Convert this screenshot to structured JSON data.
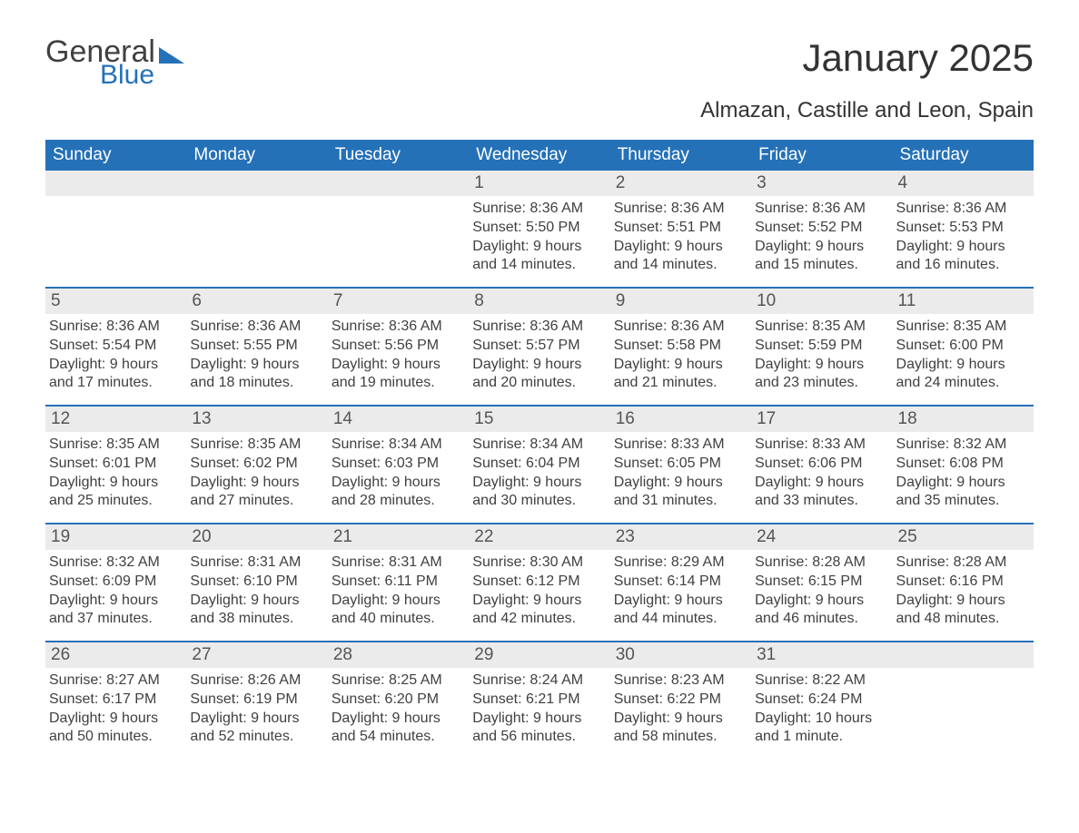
{
  "logo": {
    "text1": "General",
    "text2": "Blue"
  },
  "title": "January 2025",
  "subtitle": "Almazan, Castille and Leon, Spain",
  "colors": {
    "header_bg": "#2571b8",
    "header_text": "#ffffff",
    "daynum_bg": "#ebebeb",
    "week_border": "#2571b8",
    "body_text": "#404040",
    "page_bg": "#ffffff"
  },
  "day_headers": [
    "Sunday",
    "Monday",
    "Tuesday",
    "Wednesday",
    "Thursday",
    "Friday",
    "Saturday"
  ],
  "weeks": [
    [
      {
        "num": "",
        "sunrise": "",
        "sunset": "",
        "daylight1": "",
        "daylight2": ""
      },
      {
        "num": "",
        "sunrise": "",
        "sunset": "",
        "daylight1": "",
        "daylight2": ""
      },
      {
        "num": "",
        "sunrise": "",
        "sunset": "",
        "daylight1": "",
        "daylight2": ""
      },
      {
        "num": "1",
        "sunrise": "Sunrise: 8:36 AM",
        "sunset": "Sunset: 5:50 PM",
        "daylight1": "Daylight: 9 hours",
        "daylight2": "and 14 minutes."
      },
      {
        "num": "2",
        "sunrise": "Sunrise: 8:36 AM",
        "sunset": "Sunset: 5:51 PM",
        "daylight1": "Daylight: 9 hours",
        "daylight2": "and 14 minutes."
      },
      {
        "num": "3",
        "sunrise": "Sunrise: 8:36 AM",
        "sunset": "Sunset: 5:52 PM",
        "daylight1": "Daylight: 9 hours",
        "daylight2": "and 15 minutes."
      },
      {
        "num": "4",
        "sunrise": "Sunrise: 8:36 AM",
        "sunset": "Sunset: 5:53 PM",
        "daylight1": "Daylight: 9 hours",
        "daylight2": "and 16 minutes."
      }
    ],
    [
      {
        "num": "5",
        "sunrise": "Sunrise: 8:36 AM",
        "sunset": "Sunset: 5:54 PM",
        "daylight1": "Daylight: 9 hours",
        "daylight2": "and 17 minutes."
      },
      {
        "num": "6",
        "sunrise": "Sunrise: 8:36 AM",
        "sunset": "Sunset: 5:55 PM",
        "daylight1": "Daylight: 9 hours",
        "daylight2": "and 18 minutes."
      },
      {
        "num": "7",
        "sunrise": "Sunrise: 8:36 AM",
        "sunset": "Sunset: 5:56 PM",
        "daylight1": "Daylight: 9 hours",
        "daylight2": "and 19 minutes."
      },
      {
        "num": "8",
        "sunrise": "Sunrise: 8:36 AM",
        "sunset": "Sunset: 5:57 PM",
        "daylight1": "Daylight: 9 hours",
        "daylight2": "and 20 minutes."
      },
      {
        "num": "9",
        "sunrise": "Sunrise: 8:36 AM",
        "sunset": "Sunset: 5:58 PM",
        "daylight1": "Daylight: 9 hours",
        "daylight2": "and 21 minutes."
      },
      {
        "num": "10",
        "sunrise": "Sunrise: 8:35 AM",
        "sunset": "Sunset: 5:59 PM",
        "daylight1": "Daylight: 9 hours",
        "daylight2": "and 23 minutes."
      },
      {
        "num": "11",
        "sunrise": "Sunrise: 8:35 AM",
        "sunset": "Sunset: 6:00 PM",
        "daylight1": "Daylight: 9 hours",
        "daylight2": "and 24 minutes."
      }
    ],
    [
      {
        "num": "12",
        "sunrise": "Sunrise: 8:35 AM",
        "sunset": "Sunset: 6:01 PM",
        "daylight1": "Daylight: 9 hours",
        "daylight2": "and 25 minutes."
      },
      {
        "num": "13",
        "sunrise": "Sunrise: 8:35 AM",
        "sunset": "Sunset: 6:02 PM",
        "daylight1": "Daylight: 9 hours",
        "daylight2": "and 27 minutes."
      },
      {
        "num": "14",
        "sunrise": "Sunrise: 8:34 AM",
        "sunset": "Sunset: 6:03 PM",
        "daylight1": "Daylight: 9 hours",
        "daylight2": "and 28 minutes."
      },
      {
        "num": "15",
        "sunrise": "Sunrise: 8:34 AM",
        "sunset": "Sunset: 6:04 PM",
        "daylight1": "Daylight: 9 hours",
        "daylight2": "and 30 minutes."
      },
      {
        "num": "16",
        "sunrise": "Sunrise: 8:33 AM",
        "sunset": "Sunset: 6:05 PM",
        "daylight1": "Daylight: 9 hours",
        "daylight2": "and 31 minutes."
      },
      {
        "num": "17",
        "sunrise": "Sunrise: 8:33 AM",
        "sunset": "Sunset: 6:06 PM",
        "daylight1": "Daylight: 9 hours",
        "daylight2": "and 33 minutes."
      },
      {
        "num": "18",
        "sunrise": "Sunrise: 8:32 AM",
        "sunset": "Sunset: 6:08 PM",
        "daylight1": "Daylight: 9 hours",
        "daylight2": "and 35 minutes."
      }
    ],
    [
      {
        "num": "19",
        "sunrise": "Sunrise: 8:32 AM",
        "sunset": "Sunset: 6:09 PM",
        "daylight1": "Daylight: 9 hours",
        "daylight2": "and 37 minutes."
      },
      {
        "num": "20",
        "sunrise": "Sunrise: 8:31 AM",
        "sunset": "Sunset: 6:10 PM",
        "daylight1": "Daylight: 9 hours",
        "daylight2": "and 38 minutes."
      },
      {
        "num": "21",
        "sunrise": "Sunrise: 8:31 AM",
        "sunset": "Sunset: 6:11 PM",
        "daylight1": "Daylight: 9 hours",
        "daylight2": "and 40 minutes."
      },
      {
        "num": "22",
        "sunrise": "Sunrise: 8:30 AM",
        "sunset": "Sunset: 6:12 PM",
        "daylight1": "Daylight: 9 hours",
        "daylight2": "and 42 minutes."
      },
      {
        "num": "23",
        "sunrise": "Sunrise: 8:29 AM",
        "sunset": "Sunset: 6:14 PM",
        "daylight1": "Daylight: 9 hours",
        "daylight2": "and 44 minutes."
      },
      {
        "num": "24",
        "sunrise": "Sunrise: 8:28 AM",
        "sunset": "Sunset: 6:15 PM",
        "daylight1": "Daylight: 9 hours",
        "daylight2": "and 46 minutes."
      },
      {
        "num": "25",
        "sunrise": "Sunrise: 8:28 AM",
        "sunset": "Sunset: 6:16 PM",
        "daylight1": "Daylight: 9 hours",
        "daylight2": "and 48 minutes."
      }
    ],
    [
      {
        "num": "26",
        "sunrise": "Sunrise: 8:27 AM",
        "sunset": "Sunset: 6:17 PM",
        "daylight1": "Daylight: 9 hours",
        "daylight2": "and 50 minutes."
      },
      {
        "num": "27",
        "sunrise": "Sunrise: 8:26 AM",
        "sunset": "Sunset: 6:19 PM",
        "daylight1": "Daylight: 9 hours",
        "daylight2": "and 52 minutes."
      },
      {
        "num": "28",
        "sunrise": "Sunrise: 8:25 AM",
        "sunset": "Sunset: 6:20 PM",
        "daylight1": "Daylight: 9 hours",
        "daylight2": "and 54 minutes."
      },
      {
        "num": "29",
        "sunrise": "Sunrise: 8:24 AM",
        "sunset": "Sunset: 6:21 PM",
        "daylight1": "Daylight: 9 hours",
        "daylight2": "and 56 minutes."
      },
      {
        "num": "30",
        "sunrise": "Sunrise: 8:23 AM",
        "sunset": "Sunset: 6:22 PM",
        "daylight1": "Daylight: 9 hours",
        "daylight2": "and 58 minutes."
      },
      {
        "num": "31",
        "sunrise": "Sunrise: 8:22 AM",
        "sunset": "Sunset: 6:24 PM",
        "daylight1": "Daylight: 10 hours",
        "daylight2": "and 1 minute."
      },
      {
        "num": "",
        "sunrise": "",
        "sunset": "",
        "daylight1": "",
        "daylight2": ""
      }
    ]
  ]
}
